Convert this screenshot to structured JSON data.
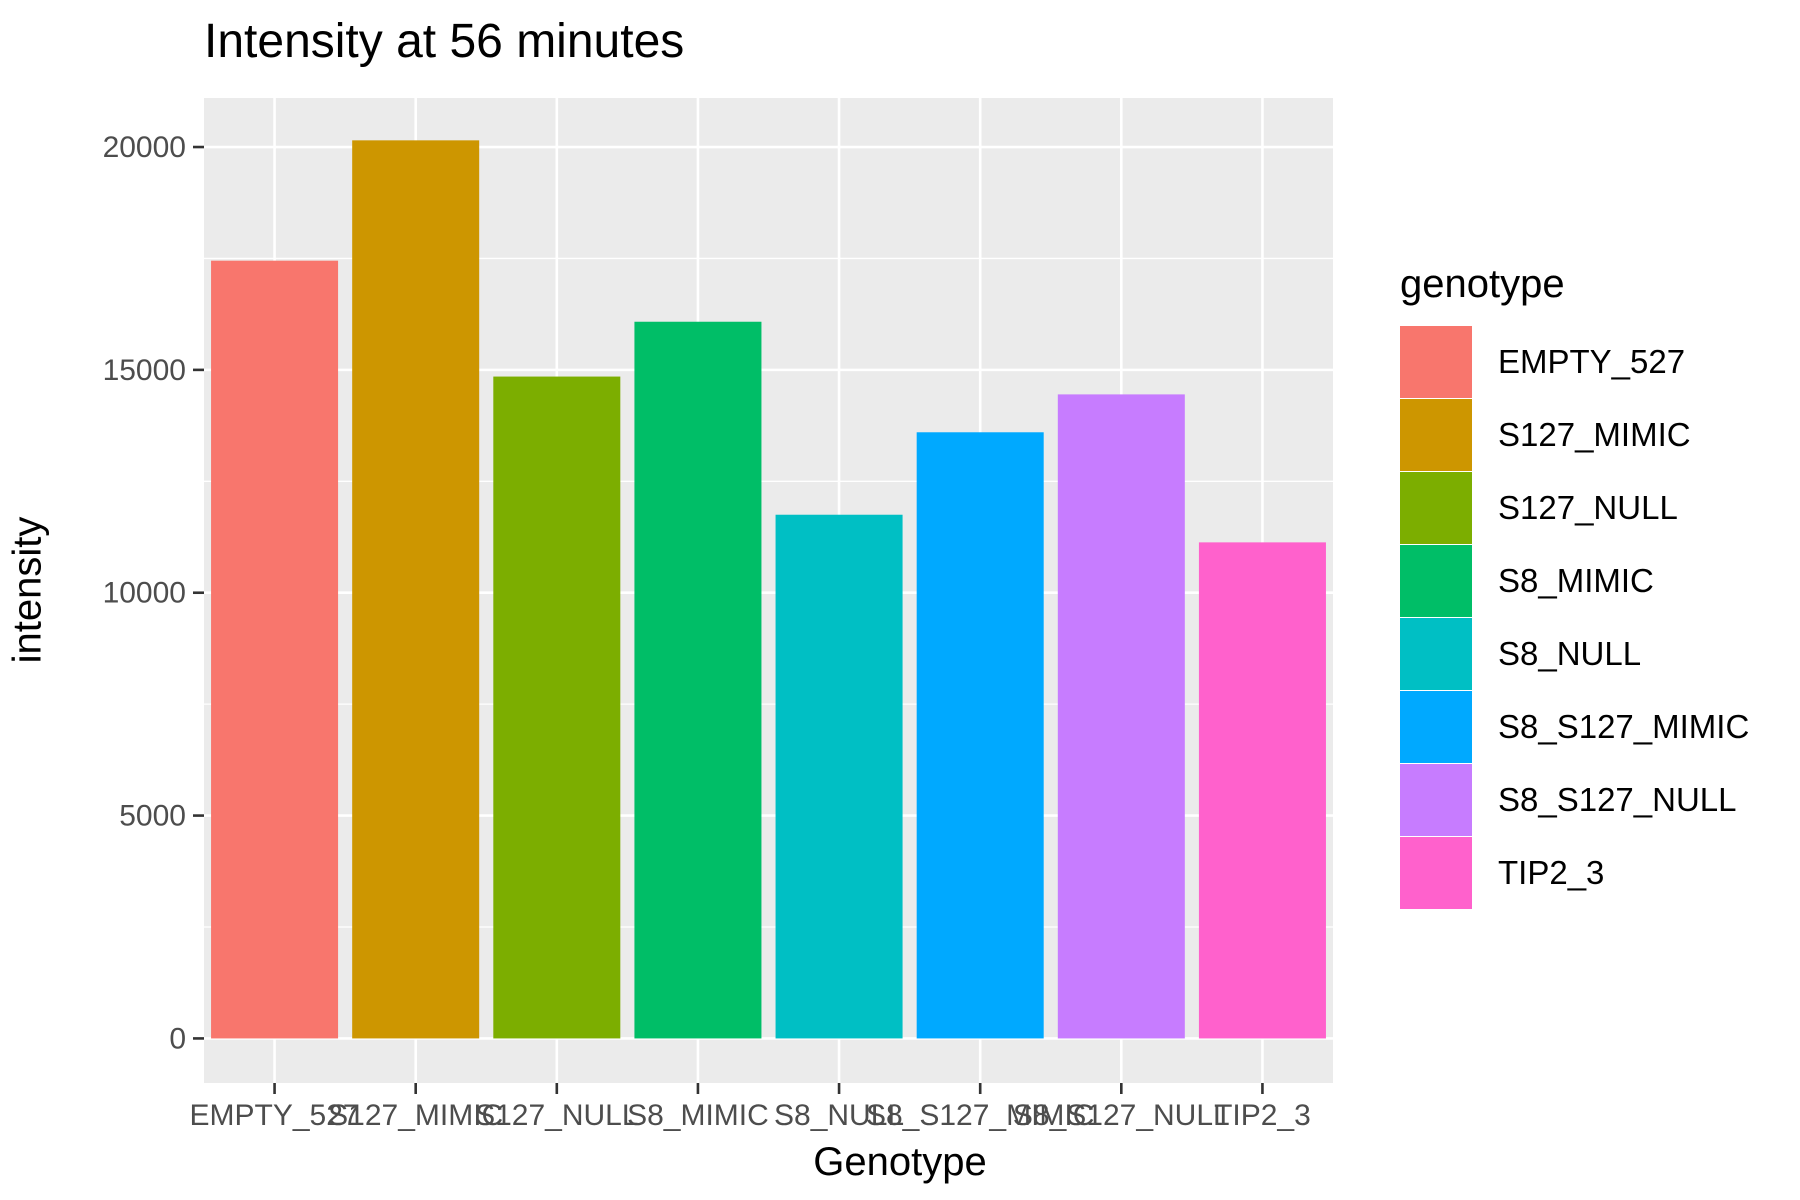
{
  "chart_data": {
    "type": "bar",
    "title": "Intensity at 56 minutes",
    "xlabel": "Genotype",
    "ylabel": "intensity",
    "categories": [
      "EMPTY_527",
      "S127_MIMIC",
      "S127_NULL",
      "S8_MIMIC",
      "S8_NULL",
      "S8_S127_MIMIC",
      "S8_S127_NULL",
      "TIP2_3"
    ],
    "values": [
      17450,
      20150,
      14850,
      16080,
      11750,
      13600,
      14450,
      11130
    ],
    "ylim": [
      -1000,
      21100
    ],
    "yticks": [
      0,
      5000,
      10000,
      15000,
      20000
    ],
    "ytick_labels": [
      "0",
      "5000",
      "10000",
      "15000",
      "20000"
    ],
    "grid": true,
    "legend": {
      "title": "genotype",
      "position": "right",
      "entries": [
        "EMPTY_527",
        "S127_MIMIC",
        "S127_NULL",
        "S8_MIMIC",
        "S8_NULL",
        "S8_S127_MIMIC",
        "S8_S127_NULL",
        "TIP2_3"
      ]
    },
    "colors": [
      "#F8766D",
      "#CD9600",
      "#7CAE00",
      "#00BE67",
      "#00BFC4",
      "#00A9FF",
      "#C77CFF",
      "#FF61CC"
    ],
    "panel_background": "#EBEBEB",
    "grid_color": "#FFFFFF"
  }
}
